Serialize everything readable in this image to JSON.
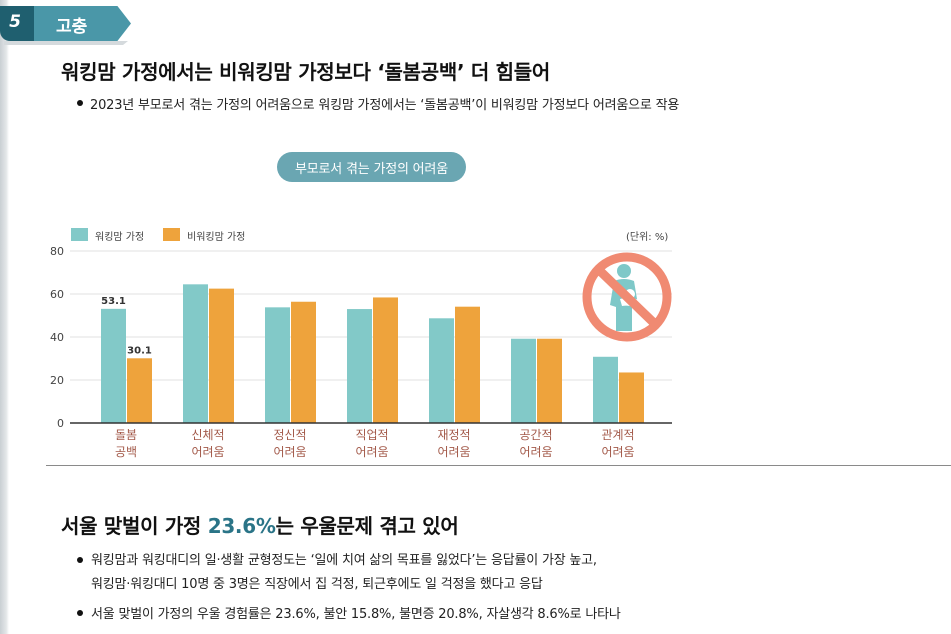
{
  "section": {
    "number": "5",
    "label": "고충"
  },
  "headline1": "워킹맘 가정에서는 비워킹맘 가정보다 ‘돌봄공백’ 더 힘들어",
  "bullet1": "2023년 부모로서 겪는 가정의 어려움으로 워킹맘 가정에서는 ‘돌봄공백’이 비워킹맘 가정보다 어려움으로 작용",
  "chart_title": "부모로서 겪는 가정의 어려움",
  "unit_label": "(단위: %)",
  "icon": "no-childcare-icon",
  "colors": {
    "working": "#82c9c8",
    "nonworking": "#eea33c",
    "category_text": "#a35a4a",
    "icon_ring": "#f08a72",
    "icon_figure": "#7ec8c8"
  },
  "chart_data": {
    "type": "bar",
    "categories": [
      [
        "돌봄",
        "공백"
      ],
      [
        "신체적",
        "어려움"
      ],
      [
        "정신적",
        "어려움"
      ],
      [
        "직업적",
        "어려움"
      ],
      [
        "재정적",
        "어려움"
      ],
      [
        "공간적",
        "어려움"
      ],
      [
        "관계적",
        "어려움"
      ]
    ],
    "series": [
      {
        "name": "워킹맘 가정",
        "values": [
          53.1,
          64.5,
          53.8,
          53.0,
          48.7,
          39.2,
          30.8
        ]
      },
      {
        "name": "비워킹맘 가정",
        "values": [
          30.1,
          62.5,
          56.4,
          58.4,
          54.1,
          39.2,
          23.5
        ]
      }
    ],
    "data_labels": [
      {
        "series": 0,
        "index": 0,
        "text": "53.1"
      },
      {
        "series": 1,
        "index": 0,
        "text": "30.1"
      }
    ],
    "ylim": [
      0,
      80
    ],
    "yticks": [
      0,
      20,
      40,
      60,
      80
    ],
    "grid": true,
    "legend_position": "top-left"
  },
  "headline2": {
    "pre": "서울 맞벌이 가정 ",
    "highlight": "23.6%",
    "post": "는 우울문제 겪고 있어"
  },
  "bullet2_line1": "워킹맘과 워킹대디의 일·생활 균형정도는 ‘일에 치여 삶의 목표를 잃었다’는 응답률이 가장 높고,",
  "bullet2_line2": "워킹맘·워킹대디 10명 중 3명은 직장에서 집 걱정, 퇴근후에도 일 걱정을 했다고 응답",
  "bullet3": "서울 맞벌이 가정의 우울 경험률은 23.6%, 불안 15.8%, 불면증 20.8%, 자살생각 8.6%로 나타나"
}
